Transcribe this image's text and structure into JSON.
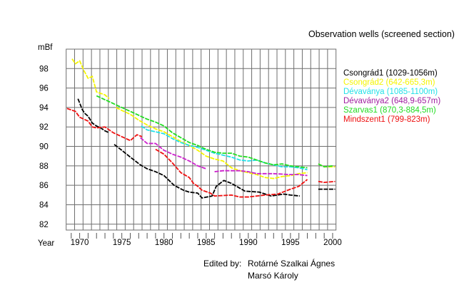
{
  "chart_data": {
    "type": "line",
    "title": "Observation wells (screened section)",
    "ylabel": "mBf",
    "xlabel": "Year",
    "xlim": [
      1968.4,
      2000.4
    ],
    "ylim": [
      81.4,
      100
    ],
    "grid": true,
    "legend_placement": "right",
    "yticks": [
      "82",
      "84",
      "86",
      "88",
      "90",
      "92",
      "94",
      "96",
      "98"
    ],
    "xticks": [
      "1970",
      "1975",
      "1980",
      "1985",
      "1990",
      "1995",
      "2000"
    ],
    "series": [
      {
        "name": "Csongrád1 (1029-1056m)",
        "color": "#000000",
        "segments": [
          [
            [
              1969.8,
              94.9
            ],
            [
              1970.3,
              93.8
            ],
            [
              1970.6,
              93.4
            ],
            [
              1971,
              93.1
            ],
            [
              1971.5,
              92.4
            ],
            [
              1972,
              92.1
            ],
            [
              1972.5,
              91.9
            ],
            [
              1973,
              91.6
            ],
            [
              1973.5,
              91.4
            ]
          ],
          [
            [
              1974.1,
              90.2
            ],
            [
              1975,
              89.6
            ],
            [
              1976,
              88.9
            ],
            [
              1977.2,
              88.1
            ],
            [
              1978,
              87.7
            ],
            [
              1979,
              87.4
            ],
            [
              1980,
              87.0
            ],
            [
              1981.2,
              86.0
            ],
            [
              1982.3,
              85.5
            ],
            [
              1983,
              85.3
            ],
            [
              1984,
              85.2
            ],
            [
              1984.5,
              84.7
            ],
            [
              1985.7,
              84.9
            ],
            [
              1986.2,
              85.9
            ],
            [
              1987.1,
              86.5
            ],
            [
              1988,
              86.2
            ],
            [
              1988.8,
              85.8
            ],
            [
              1989.6,
              85.4
            ],
            [
              1991.3,
              85.3
            ],
            [
              1992.7,
              84.9
            ],
            [
              1994.2,
              85.1
            ],
            [
              1995,
              85.0
            ],
            [
              1996.1,
              84.9
            ]
          ],
          [
            [
              1998.3,
              85.6
            ],
            [
              1999,
              85.6
            ],
            [
              2000.3,
              85.6
            ]
          ]
        ]
      },
      {
        "name": "Csongrád2 (642-665,3m)",
        "color": "#f5f500",
        "segments": [
          [
            [
              1969.1,
              99.0
            ],
            [
              1969.5,
              98.5
            ],
            [
              1970,
              98.8
            ],
            [
              1970.5,
              97.8
            ],
            [
              1971,
              97.0
            ],
            [
              1971.5,
              97.2
            ],
            [
              1972,
              95.6
            ],
            [
              1973,
              95.3
            ],
            [
              1973.5,
              94.9
            ]
          ],
          [
            [
              1974.3,
              94.0
            ],
            [
              1975,
              93.7
            ],
            [
              1976,
              93.3
            ],
            [
              1977,
              92.7
            ],
            [
              1978,
              92.2
            ],
            [
              1979,
              91.8
            ],
            [
              1980,
              91.5
            ],
            [
              1981,
              91.0
            ],
            [
              1982,
              90.5
            ],
            [
              1983,
              90.1
            ],
            [
              1984,
              89.6
            ],
            [
              1985,
              89.0
            ],
            [
              1986,
              88.7
            ],
            [
              1987,
              88.5
            ],
            [
              1988,
              87.8
            ],
            [
              1989,
              87.5
            ],
            [
              1990,
              87.3
            ],
            [
              1991,
              87.1
            ],
            [
              1992,
              86.8
            ],
            [
              1993,
              86.7
            ],
            [
              1994,
              86.9
            ],
            [
              1995,
              87.0
            ],
            [
              1996,
              87.2
            ],
            [
              1997,
              87.3
            ]
          ],
          [
            [
              1998.3,
              88.2
            ],
            [
              1999,
              87.9
            ],
            [
              2000.3,
              87.9
            ]
          ]
        ]
      },
      {
        "name": "Dévaványa (1085-1100m)",
        "color": "#22e0e8",
        "segments": [
          [
            [
              1977.3,
              92.1
            ],
            [
              1978,
              91.7
            ],
            [
              1979,
              91.5
            ],
            [
              1980,
              91.3
            ],
            [
              1981,
              90.8
            ],
            [
              1982,
              90.4
            ],
            [
              1983,
              90.1
            ],
            [
              1984,
              89.9
            ],
            [
              1985,
              89.6
            ],
            [
              1986,
              89.3
            ],
            [
              1987,
              89.1
            ],
            [
              1988,
              88.9
            ],
            [
              1989,
              88.6
            ],
            [
              1990,
              88.5
            ],
            [
              1991,
              88.6
            ],
            [
              1992,
              88.3
            ],
            [
              1993,
              88.1
            ],
            [
              1994,
              87.9
            ],
            [
              1995,
              87.9
            ],
            [
              1996,
              87.8
            ],
            [
              1997,
              87.6
            ]
          ]
        ]
      },
      {
        "name": "Dévaványa2 (648,9-657m)",
        "color": "#cc22cc",
        "segments": [
          [
            [
              1977.2,
              90.9
            ],
            [
              1978,
              90.3
            ],
            [
              1979,
              90.3
            ],
            [
              1980,
              89.6
            ],
            [
              1981,
              89.2
            ],
            [
              1982,
              88.9
            ],
            [
              1983,
              88.5
            ],
            [
              1984,
              88.0
            ],
            [
              1985,
              87.7
            ]
          ],
          [
            [
              1986,
              87.4
            ],
            [
              1987,
              87.5
            ],
            [
              1988,
              87.5
            ],
            [
              1989,
              87.5
            ],
            [
              1990,
              87.4
            ],
            [
              1991,
              87.2
            ],
            [
              1993,
              87.2
            ],
            [
              1995,
              87.1
            ],
            [
              1996,
              87.1
            ],
            [
              1997,
              87.0
            ]
          ]
        ]
      },
      {
        "name": "Szarvas1 (870,3-884,5m)",
        "color": "#22dd22",
        "segments": [
          [
            [
              1972,
              95.2
            ],
            [
              1973,
              94.8
            ],
            [
              1974,
              94.4
            ],
            [
              1975,
              94.0
            ],
            [
              1976,
              93.6
            ],
            [
              1977,
              93.2
            ],
            [
              1978,
              92.8
            ],
            [
              1979,
              92.5
            ],
            [
              1980,
              92.1
            ],
            [
              1981,
              91.4
            ],
            [
              1982,
              90.9
            ],
            [
              1983,
              90.4
            ],
            [
              1984,
              90.1
            ],
            [
              1985,
              89.7
            ],
            [
              1986,
              89.4
            ],
            [
              1987,
              89.3
            ],
            [
              1988,
              89.3
            ],
            [
              1989,
              89.0
            ],
            [
              1990,
              88.9
            ],
            [
              1991,
              88.6
            ],
            [
              1992,
              88.3
            ],
            [
              1993,
              88.1
            ],
            [
              1994,
              88.2
            ],
            [
              1995,
              88.0
            ],
            [
              1996,
              87.9
            ],
            [
              1997,
              87.8
            ]
          ],
          [
            [
              1998.3,
              88.2
            ],
            [
              1999,
              87.9
            ],
            [
              2000,
              88.0
            ]
          ]
        ]
      },
      {
        "name": "Mindszent1 (799-823m)",
        "color": "#ee1111",
        "segments": [
          [
            [
              1968.5,
              93.9
            ],
            [
              1969.5,
              93.6
            ],
            [
              1970,
              93.0
            ],
            [
              1971,
              92.6
            ],
            [
              1971.5,
              92.0
            ],
            [
              1972,
              91.9
            ],
            [
              1973,
              92.0
            ],
            [
              1974,
              91.4
            ],
            [
              1975,
              91.0
            ],
            [
              1976,
              90.6
            ],
            [
              1976.8,
              91.2
            ],
            [
              1977.4,
              91.0
            ]
          ],
          [
            [
              1979,
              89.7
            ],
            [
              1980,
              89.2
            ],
            [
              1981,
              88.3
            ],
            [
              1982,
              87.3
            ],
            [
              1983,
              86.8
            ],
            [
              1983.5,
              86.2
            ],
            [
              1984,
              85.9
            ],
            [
              1984.5,
              85.5
            ],
            [
              1985.5,
              85.2
            ],
            [
              1986,
              84.9
            ],
            [
              1988,
              85.0
            ],
            [
              1989,
              84.8
            ],
            [
              1990,
              84.8
            ],
            [
              1992,
              85.0
            ],
            [
              1993.5,
              85.1
            ],
            [
              1995,
              85.6
            ],
            [
              1996,
              85.9
            ],
            [
              1997,
              86.6
            ]
          ],
          [
            [
              1998.3,
              86.4
            ],
            [
              1999,
              86.3
            ],
            [
              2000.3,
              86.4
            ]
          ]
        ]
      }
    ]
  },
  "credits": {
    "edited_by_label": "Edited by:",
    "names": [
      "Rotárné Szalkai Ágnes",
      "Marsó Károly"
    ]
  }
}
